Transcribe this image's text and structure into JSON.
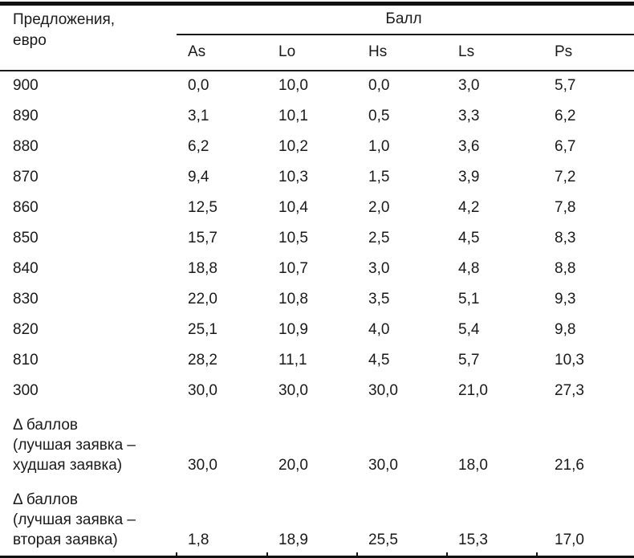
{
  "table": {
    "col1_header": "Предложения,\nевро",
    "group_header": "Балл",
    "columns": [
      "As",
      "Lo",
      "Hs",
      "Ls",
      "Ps"
    ],
    "rows": [
      {
        "label": "900",
        "values": [
          "0,0",
          "10,0",
          "0,0",
          "3,0",
          "5,7"
        ]
      },
      {
        "label": "890",
        "values": [
          "3,1",
          "10,1",
          "0,5",
          "3,3",
          "6,2"
        ]
      },
      {
        "label": "880",
        "values": [
          "6,2",
          "10,2",
          "1,0",
          "3,6",
          "6,7"
        ]
      },
      {
        "label": "870",
        "values": [
          "9,4",
          "10,3",
          "1,5",
          "3,9",
          "7,2"
        ]
      },
      {
        "label": "860",
        "values": [
          "12,5",
          "10,4",
          "2,0",
          "4,2",
          "7,8"
        ]
      },
      {
        "label": "850",
        "values": [
          "15,7",
          "10,5",
          "2,5",
          "4,5",
          "8,3"
        ]
      },
      {
        "label": "840",
        "values": [
          "18,8",
          "10,7",
          "3,0",
          "4,8",
          "8,8"
        ]
      },
      {
        "label": "830",
        "values": [
          "22,0",
          "10,8",
          "3,5",
          "5,1",
          "9,3"
        ]
      },
      {
        "label": "820",
        "values": [
          "25,1",
          "10,9",
          "4,0",
          "5,4",
          "9,8"
        ]
      },
      {
        "label": "810",
        "values": [
          "28,2",
          "11,1",
          "4,5",
          "5,7",
          "10,3"
        ]
      },
      {
        "label": "300",
        "values": [
          "30,0",
          "30,0",
          "30,0",
          "21,0",
          "27,3"
        ]
      },
      {
        "label": "Δ баллов\n(лучшая заявка –\nхудшая заявка)",
        "values": [
          "30,0",
          "20,0",
          "30,0",
          "18,0",
          "21,6"
        ]
      },
      {
        "label": "Δ баллов\n(лучшая заявка –\nвторая заявка)",
        "values": [
          "1,8",
          "18,9",
          "25,5",
          "15,3",
          "17,0"
        ]
      }
    ],
    "colors": {
      "text": "#1a1a1a",
      "border": "#111111",
      "background": "#ffffff"
    }
  }
}
